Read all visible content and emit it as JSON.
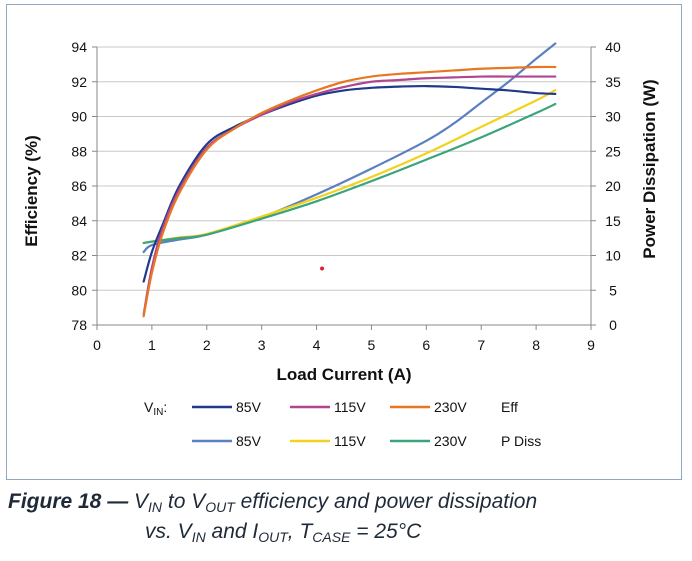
{
  "chart_data": {
    "type": "line",
    "xlabel": "Load Current (A)",
    "ylabel_left": "Efficiency (%)",
    "ylabel_right": "Power Dissipation (W)",
    "xlim": [
      0,
      9
    ],
    "xticks": [
      "0",
      "1",
      "2",
      "3",
      "4",
      "5",
      "6",
      "7",
      "8",
      "9"
    ],
    "ylim_left": [
      78,
      94
    ],
    "yticks_left": [
      "78",
      "80",
      "82",
      "84",
      "86",
      "88",
      "90",
      "92",
      "94"
    ],
    "ylim_right": [
      0,
      40
    ],
    "yticks_right": [
      "0",
      "5",
      "10",
      "15",
      "20",
      "25",
      "30",
      "35",
      "40"
    ],
    "grid": true,
    "legend": {
      "vin_label": "V",
      "vin_sub": "IN",
      "vin_suffix": ":",
      "eff_label": "Eff",
      "pdiss_label": "P Diss"
    },
    "series": [
      {
        "name": "85V",
        "group": "Eff",
        "axis": "left",
        "color": "#1f3a8a",
        "x": [
          0.85,
          1.0,
          1.2,
          1.5,
          2.0,
          2.5,
          3.0,
          3.5,
          4.0,
          4.5,
          5.0,
          5.5,
          6.0,
          6.5,
          7.0,
          7.5,
          8.0,
          8.35
        ],
        "y": [
          80.5,
          82.2,
          83.8,
          86.0,
          88.4,
          89.4,
          90.1,
          90.7,
          91.2,
          91.5,
          91.65,
          91.72,
          91.75,
          91.7,
          91.6,
          91.5,
          91.35,
          91.3
        ]
      },
      {
        "name": "115V",
        "group": "Eff",
        "axis": "left",
        "color": "#b04590",
        "x": [
          0.85,
          1.0,
          1.2,
          1.5,
          2.0,
          2.5,
          3.0,
          3.5,
          4.0,
          4.5,
          5.0,
          5.5,
          6.0,
          6.5,
          7.0,
          7.5,
          8.0,
          8.35
        ],
        "y": [
          78.6,
          81.3,
          83.6,
          85.8,
          88.2,
          89.3,
          90.1,
          90.8,
          91.3,
          91.7,
          92.0,
          92.1,
          92.2,
          92.25,
          92.3,
          92.3,
          92.3,
          92.3
        ]
      },
      {
        "name": "230V",
        "group": "Eff",
        "axis": "left",
        "color": "#e87722",
        "x": [
          0.85,
          1.0,
          1.2,
          1.5,
          2.0,
          2.5,
          3.0,
          3.5,
          4.0,
          4.5,
          5.0,
          5.5,
          6.0,
          6.5,
          7.0,
          7.5,
          8.0,
          8.35
        ],
        "y": [
          78.5,
          81.0,
          83.3,
          85.6,
          88.1,
          89.3,
          90.2,
          90.9,
          91.5,
          92.0,
          92.3,
          92.45,
          92.55,
          92.65,
          92.75,
          92.8,
          92.85,
          92.85
        ]
      },
      {
        "name": "85V",
        "group": "P Diss",
        "axis": "right",
        "color": "#5b7fc0",
        "x": [
          0.85,
          1.0,
          1.5,
          2.0,
          3.0,
          4.0,
          5.0,
          6.0,
          6.5,
          7.0,
          7.5,
          8.0,
          8.35
        ],
        "y": [
          10.5,
          11.5,
          12.3,
          13.0,
          15.5,
          18.8,
          22.5,
          26.5,
          29.0,
          32.0,
          35.0,
          38.3,
          40.5
        ]
      },
      {
        "name": "115V",
        "group": "P Diss",
        "axis": "right",
        "color": "#f2d21a",
        "x": [
          0.85,
          1.0,
          1.5,
          2.0,
          3.0,
          4.0,
          5.0,
          6.0,
          7.0,
          8.0,
          8.35
        ],
        "y": [
          11.8,
          12.0,
          12.6,
          13.1,
          15.6,
          18.3,
          21.3,
          24.7,
          28.5,
          32.3,
          33.8
        ]
      },
      {
        "name": "230V",
        "group": "P Diss",
        "axis": "right",
        "color": "#3aa57a",
        "x": [
          0.85,
          1.0,
          1.5,
          2.0,
          3.0,
          4.0,
          5.0,
          6.0,
          7.0,
          8.0,
          8.35
        ],
        "y": [
          11.8,
          12.0,
          12.5,
          13.0,
          15.3,
          17.8,
          20.7,
          23.8,
          27.0,
          30.5,
          31.8
        ]
      }
    ],
    "annotation_point": {
      "x": 4.1,
      "y_left": 81.25,
      "color": "#e0212b"
    }
  },
  "caption": {
    "figure_label": "Figure 18 —",
    "part1_a": " V",
    "part1_sub_a": "IN",
    "part1_b": " to V",
    "part1_sub_b": "OUT",
    "part1_c": " efficiency and power dissipation",
    "part2_a": "vs. V",
    "part2_sub_a": "IN",
    "part2_b": " and I",
    "part2_sub_b": "OUT",
    "part2_c": ", T",
    "part2_sub_c": "CASE",
    "part2_d": " = 25°C"
  }
}
